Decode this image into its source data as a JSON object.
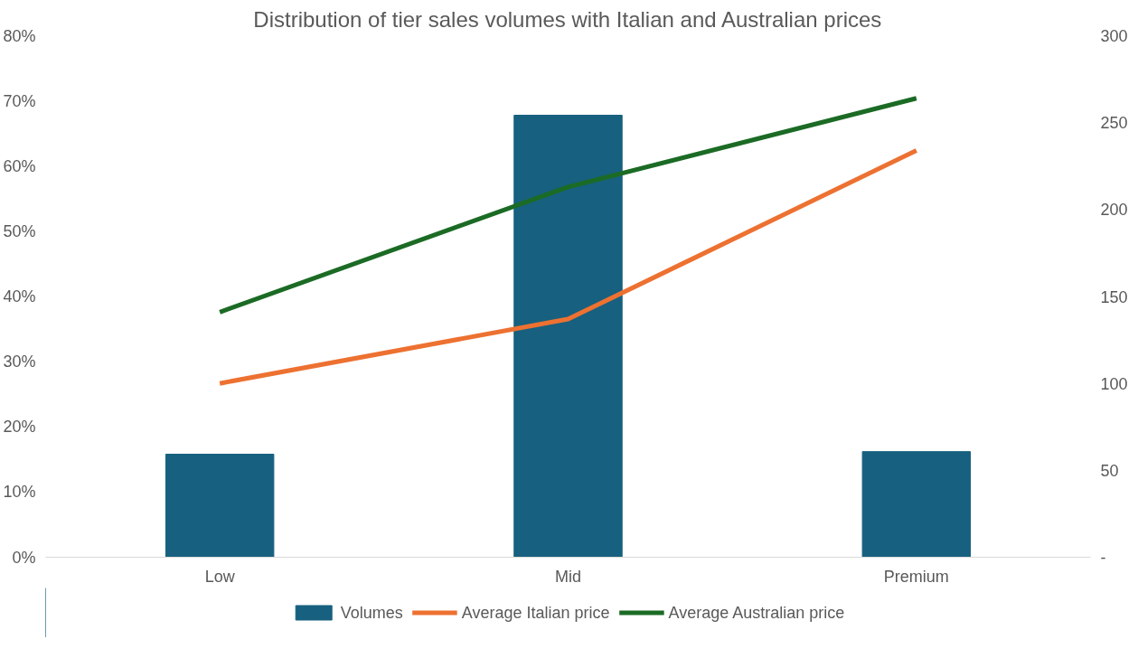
{
  "chart_data": {
    "type": "bar",
    "title": "Distribution of tier sales volumes with Italian and Australian prices",
    "categories": [
      "Low",
      "Mid",
      "Premium"
    ],
    "series": [
      {
        "name": "Volumes",
        "type": "bar",
        "color": "#17607f",
        "values": [
          15.8,
          67.8,
          16.2
        ]
      },
      {
        "name": "Average Italian price",
        "type": "line",
        "axis": "y2",
        "color": "#ed7131",
        "values": [
          100,
          137,
          234
        ]
      },
      {
        "name": "Average Australian price",
        "type": "line",
        "axis": "y2",
        "color": "#1b6b25",
        "values": [
          141,
          213,
          264
        ]
      }
    ],
    "ylim": [
      0,
      80
    ],
    "yticks": [
      {
        "value": 0,
        "label": "0%"
      },
      {
        "value": 10,
        "label": "10%"
      },
      {
        "value": 20,
        "label": "20%"
      },
      {
        "value": 30,
        "label": "30%"
      },
      {
        "value": 40,
        "label": "40%"
      },
      {
        "value": 50,
        "label": "50%"
      },
      {
        "value": 60,
        "label": "60%"
      },
      {
        "value": 70,
        "label": "70%"
      },
      {
        "value": 80,
        "label": "80%"
      }
    ],
    "y2lim": [
      0,
      300
    ],
    "y2ticks": [
      {
        "value": 0,
        "label": "-"
      },
      50,
      100,
      150,
      200,
      250,
      300
    ],
    "grid": false,
    "legend": "bottom",
    "line_style": "solid",
    "marker": "none"
  }
}
